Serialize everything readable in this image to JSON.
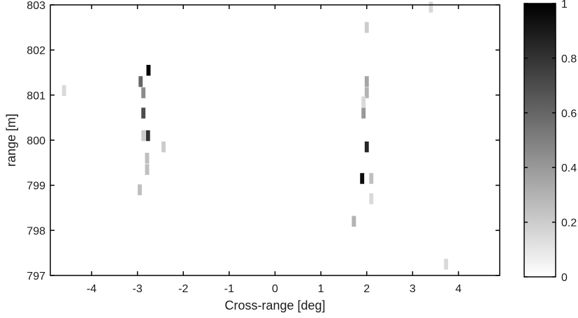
{
  "chart_data": {
    "type": "heatmap",
    "title": "",
    "xlabel": "Cross-range [deg]",
    "ylabel": "range [m]",
    "xlim": [
      -4.9,
      4.9
    ],
    "ylim": [
      797,
      803
    ],
    "x_ticks": [
      -4,
      -3,
      -2,
      -1,
      0,
      1,
      2,
      3,
      4
    ],
    "y_ticks": [
      797,
      798,
      799,
      800,
      801,
      802,
      803
    ],
    "x_tick_labels": [
      "-4",
      "-3",
      "-2",
      "-1",
      "0",
      "1",
      "2",
      "3",
      "4"
    ],
    "y_tick_labels": [
      "797",
      "798",
      "799",
      "800",
      "801",
      "802",
      "803"
    ],
    "grid": false,
    "colormap": "gray-reversed",
    "colorbar": {
      "range": [
        0,
        1
      ],
      "ticks": [
        0,
        0.2,
        0.4,
        0.6,
        0.8,
        1
      ],
      "tick_labels": [
        "0",
        "0.2",
        "0.4",
        "0.6",
        "0.8",
        "1"
      ]
    },
    "cell_size": {
      "dx_deg": 0.09,
      "dy_m": 0.24
    },
    "cells": [
      {
        "x": -4.6,
        "y": 801.1,
        "v": 0.15
      },
      {
        "x": -2.76,
        "y": 801.55,
        "v": 1.0
      },
      {
        "x": -2.93,
        "y": 801.3,
        "v": 0.6
      },
      {
        "x": -2.87,
        "y": 801.05,
        "v": 0.45
      },
      {
        "x": -2.87,
        "y": 800.6,
        "v": 0.7
      },
      {
        "x": -2.87,
        "y": 800.1,
        "v": 0.2
      },
      {
        "x": -2.77,
        "y": 800.1,
        "v": 0.8
      },
      {
        "x": -2.79,
        "y": 799.6,
        "v": 0.25
      },
      {
        "x": -2.79,
        "y": 799.35,
        "v": 0.25
      },
      {
        "x": -2.43,
        "y": 799.85,
        "v": 0.2
      },
      {
        "x": -2.95,
        "y": 798.9,
        "v": 0.25
      },
      {
        "x": 2.0,
        "y": 802.5,
        "v": 0.2
      },
      {
        "x": 2.0,
        "y": 801.3,
        "v": 0.35
      },
      {
        "x": 2.0,
        "y": 801.05,
        "v": 0.3
      },
      {
        "x": 1.93,
        "y": 800.85,
        "v": 0.15
      },
      {
        "x": 1.93,
        "y": 800.6,
        "v": 0.4
      },
      {
        "x": 2.0,
        "y": 799.85,
        "v": 0.85
      },
      {
        "x": 1.9,
        "y": 799.15,
        "v": 0.95
      },
      {
        "x": 2.1,
        "y": 799.15,
        "v": 0.25
      },
      {
        "x": 2.1,
        "y": 798.7,
        "v": 0.15
      },
      {
        "x": 1.72,
        "y": 798.2,
        "v": 0.3
      },
      {
        "x": 3.4,
        "y": 802.95,
        "v": 0.15
      },
      {
        "x": 3.73,
        "y": 797.25,
        "v": 0.15
      }
    ]
  }
}
